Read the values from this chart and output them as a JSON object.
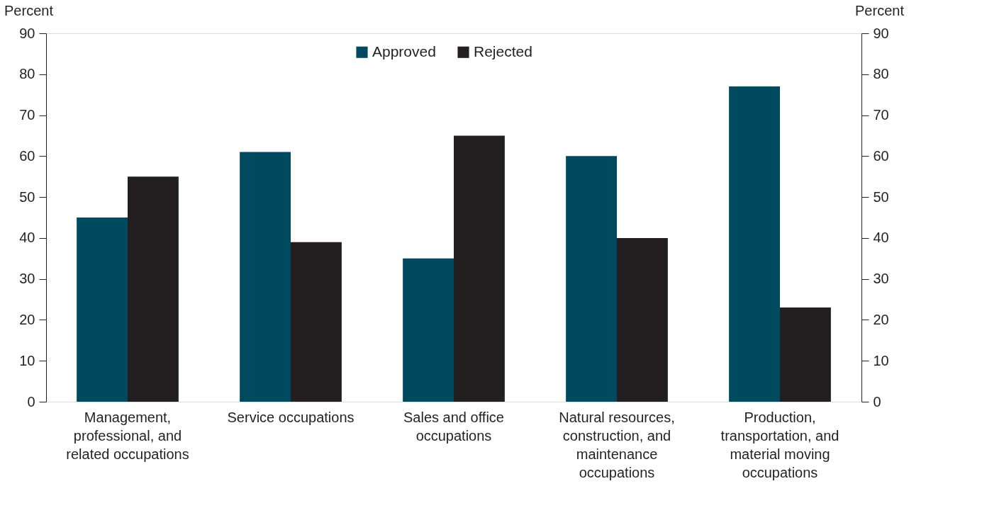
{
  "chart_data": {
    "type": "bar",
    "categories": [
      "Management, professional, and related occupations",
      "Service occupations",
      "Sales and office occupations",
      "Natural resources, construction, and maintenance occupations",
      "Production, transportation, and material moving occupations"
    ],
    "series": [
      {
        "name": "Approved",
        "color": "#004a60",
        "values": [
          45,
          61,
          35,
          60,
          77
        ]
      },
      {
        "name": "Rejected",
        "color": "#231f20",
        "values": [
          55,
          39,
          65,
          40,
          23
        ]
      }
    ],
    "ylabel": "Percent",
    "y2label": "Percent",
    "ylim": [
      0,
      90
    ],
    "yticks": [
      0,
      10,
      20,
      30,
      40,
      50,
      60,
      70,
      80,
      90
    ],
    "y2lim": [
      0,
      90
    ],
    "y2ticks": [
      0,
      10,
      20,
      30,
      40,
      50,
      60,
      70,
      80,
      90
    ],
    "legend": "top",
    "grid": false
  }
}
